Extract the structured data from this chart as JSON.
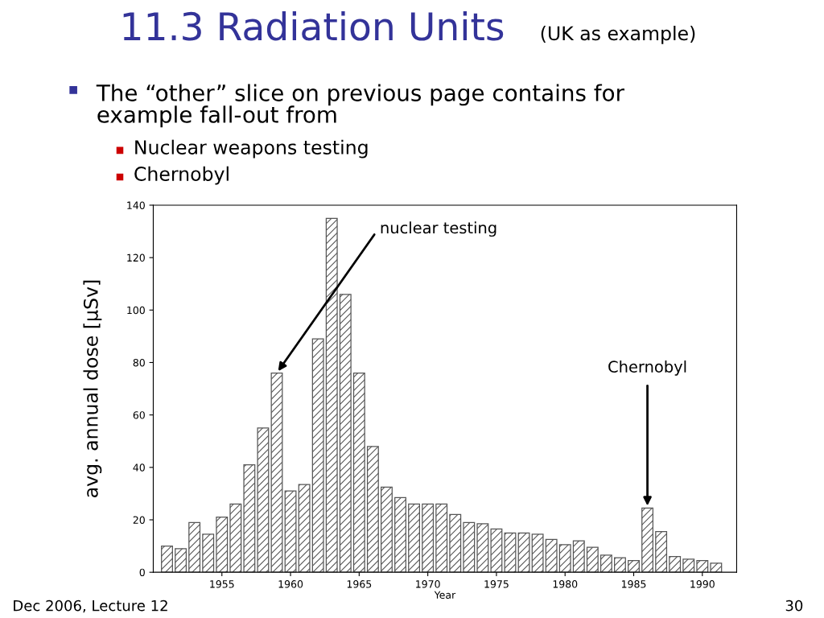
{
  "chart_data": {
    "type": "bar",
    "title": "11.3 Radiation Units",
    "subtitle": "(UK as example)",
    "xlabel": "Year",
    "ylabel": "avg. annual dose [μSv]",
    "x": [
      1951,
      1952,
      1953,
      1954,
      1955,
      1956,
      1957,
      1958,
      1959,
      1960,
      1961,
      1962,
      1963,
      1964,
      1965,
      1966,
      1967,
      1968,
      1969,
      1970,
      1971,
      1972,
      1973,
      1974,
      1975,
      1976,
      1977,
      1978,
      1979,
      1980,
      1981,
      1982,
      1983,
      1984,
      1985,
      1986,
      1987,
      1988,
      1989,
      1990,
      1991
    ],
    "values": [
      10,
      9,
      19,
      14.5,
      21,
      26,
      41,
      55,
      76,
      31,
      33.5,
      89,
      135,
      106,
      76,
      48,
      32.5,
      28.5,
      26,
      26,
      26,
      22,
      19,
      18.5,
      16.5,
      15,
      15,
      14.5,
      12.5,
      10.5,
      12,
      9.5,
      6.5,
      5.5,
      4.5,
      24.5,
      15.5,
      6,
      5,
      4.5,
      3.5
    ],
    "color": "#555555",
    "xlim": [
      1950,
      1992.5
    ],
    "xticks": [
      1955,
      1960,
      1965,
      1970,
      1975,
      1980,
      1985,
      1990
    ],
    "ylim": [
      0,
      140
    ],
    "yticks": [
      0,
      20,
      40,
      60,
      80,
      100,
      120,
      140
    ],
    "grid": false,
    "legend": false,
    "annotations": [
      "The “other” slice on previous page contains for\nexample fall-out from",
      "Nuclear weapons testing",
      "Chernobyl",
      {
        "text": "nuclear testing",
        "x": 1959,
        "y": 76
      },
      {
        "text": "Chernobyl",
        "x": 1986,
        "y": 24.5
      },
      "Dec 2006, Lecture 12",
      "30"
    ]
  }
}
